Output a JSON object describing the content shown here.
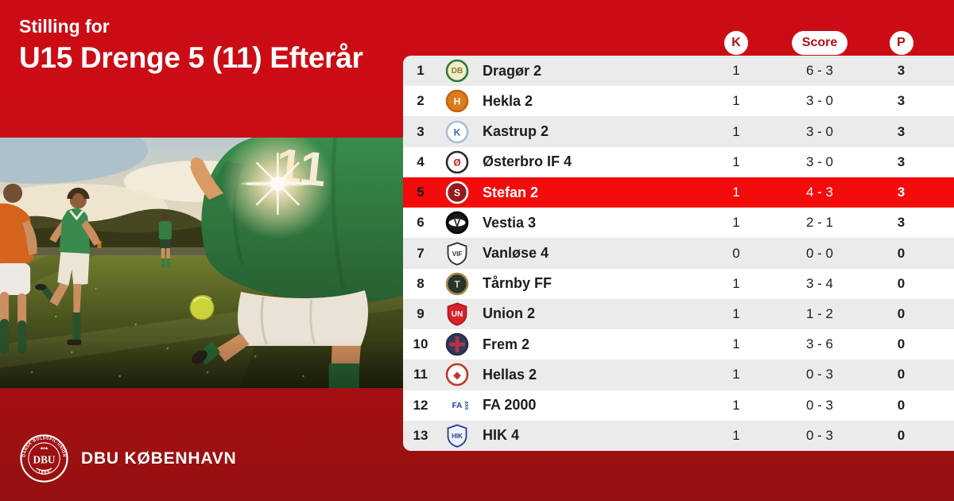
{
  "header": {
    "subtitle": "Stilling for",
    "title": "U15 Drenge 5 (11) Efterår"
  },
  "colors": {
    "bg_top": "#cd0c15",
    "bg_bottom": "#951010",
    "highlight": "#f20c0c",
    "row_alt": "#ebebeb",
    "badge_text": "#b30f12",
    "text_dark": "#1d1d1b",
    "brand_white": "#ffffff"
  },
  "photo": {
    "description": "football-match-photo",
    "jersey_number": "11"
  },
  "table": {
    "columns": [
      {
        "key": "k",
        "label": "K"
      },
      {
        "key": "score",
        "label": "Score"
      },
      {
        "key": "p",
        "label": "P"
      }
    ],
    "rows": [
      {
        "rank": "1",
        "team": "Dragør 2",
        "k": "1",
        "score": "6 - 3",
        "p": "3",
        "highlight": false,
        "logo": {
          "name": "dragoer-crest-icon",
          "shape": "circle",
          "bg": "#f2ecca",
          "ring": "#2e7d36",
          "fg": "#8a7d25",
          "label": "DB"
        }
      },
      {
        "rank": "2",
        "team": "Hekla 2",
        "k": "1",
        "score": "3 - 0",
        "p": "3",
        "highlight": false,
        "logo": {
          "name": "hekla-crest-icon",
          "shape": "circle",
          "bg": "#de7c1d",
          "ring": "#c2660f",
          "fg": "#ffffff",
          "label": "H"
        }
      },
      {
        "rank": "3",
        "team": "Kastrup 2",
        "k": "1",
        "score": "3 - 0",
        "p": "3",
        "highlight": false,
        "logo": {
          "name": "kastrup-crest-icon",
          "shape": "circle",
          "bg": "#ffffff",
          "ring": "#a9bedc",
          "fg": "#3a6ab0",
          "label": "K"
        }
      },
      {
        "rank": "4",
        "team": "Østerbro IF 4",
        "k": "1",
        "score": "3 - 0",
        "p": "3",
        "highlight": false,
        "logo": {
          "name": "oesterbro-crest-icon",
          "shape": "circle",
          "bg": "#ffffff",
          "ring": "#2b2b2b",
          "fg": "#d41920",
          "label": "Ø"
        }
      },
      {
        "rank": "5",
        "team": "Stefan 2",
        "k": "1",
        "score": "4 - 3",
        "p": "3",
        "highlight": true,
        "logo": {
          "name": "stefan-crest-icon",
          "shape": "circle",
          "bg": "#951a1e",
          "ring": "#ffffff",
          "fg": "#ffffff",
          "label": "S"
        }
      },
      {
        "rank": "6",
        "team": "Vestia 3",
        "k": "1",
        "score": "2 - 1",
        "p": "3",
        "highlight": false,
        "logo": {
          "name": "vestia-crest-icon",
          "shape": "circle",
          "bg": "#181818",
          "ring": "#000000",
          "fg": "#111111",
          "band": "#ffffff",
          "label": "V"
        }
      },
      {
        "rank": "7",
        "team": "Vanløse 4",
        "k": "0",
        "score": "0 - 0",
        "p": "0",
        "highlight": false,
        "logo": {
          "name": "vanloese-crest-icon",
          "shape": "shield",
          "bg": "#ffffff",
          "ring": "#2b2b2b",
          "fg": "#2b2b2b",
          "label": "VIF"
        }
      },
      {
        "rank": "8",
        "team": "Tårnby FF",
        "k": "1",
        "score": "3 - 4",
        "p": "0",
        "highlight": false,
        "logo": {
          "name": "taarnby-crest-icon",
          "shape": "circle",
          "bg": "#28352e",
          "ring": "#ab8a49",
          "fg": "#d9d4b8",
          "label": "T"
        }
      },
      {
        "rank": "9",
        "team": "Union 2",
        "k": "1",
        "score": "1 - 2",
        "p": "0",
        "highlight": false,
        "logo": {
          "name": "union-crest-icon",
          "shape": "shield",
          "bg": "#d8232a",
          "ring": "#a91a20",
          "fg": "#ffffff",
          "label": "UN"
        }
      },
      {
        "rank": "10",
        "team": "Frem 2",
        "k": "1",
        "score": "3 - 6",
        "p": "0",
        "highlight": false,
        "logo": {
          "name": "frem-crest-icon",
          "shape": "circle",
          "bg": "#2e3b5e",
          "ring": "#232f4e",
          "fg": "#b03545",
          "cross": true
        }
      },
      {
        "rank": "11",
        "team": "Hellas 2",
        "k": "1",
        "score": "0 - 3",
        "p": "0",
        "highlight": false,
        "logo": {
          "name": "hellas-crest-icon",
          "shape": "circle",
          "bg": "#ffffff",
          "ring": "#c2352b",
          "fg": "#c2352b",
          "label": "◆"
        }
      },
      {
        "rank": "12",
        "team": "FA 2000",
        "k": "1",
        "score": "0 - 3",
        "p": "0",
        "highlight": false,
        "logo": {
          "name": "fa2000-crest-icon",
          "shape": "plain",
          "bg": "transparent",
          "ring": "transparent",
          "fg": "#1d3e9b",
          "label": "FA",
          "sub": "2000"
        }
      },
      {
        "rank": "13",
        "team": "HIK 4",
        "k": "1",
        "score": "0 - 3",
        "p": "0",
        "highlight": false,
        "logo": {
          "name": "hik-crest-icon",
          "shape": "shield",
          "bg": "#eef2fa",
          "ring": "#1d3e8f",
          "fg": "#1d3e8f",
          "label": "HIK"
        }
      }
    ]
  },
  "footer": {
    "org_name": "DBU KØBENHAVN",
    "seal_top_text": "DANSK·BOLDSPIL·UNION",
    "seal_bottom_text": "·1889·",
    "seal_center_text": "DBU"
  }
}
